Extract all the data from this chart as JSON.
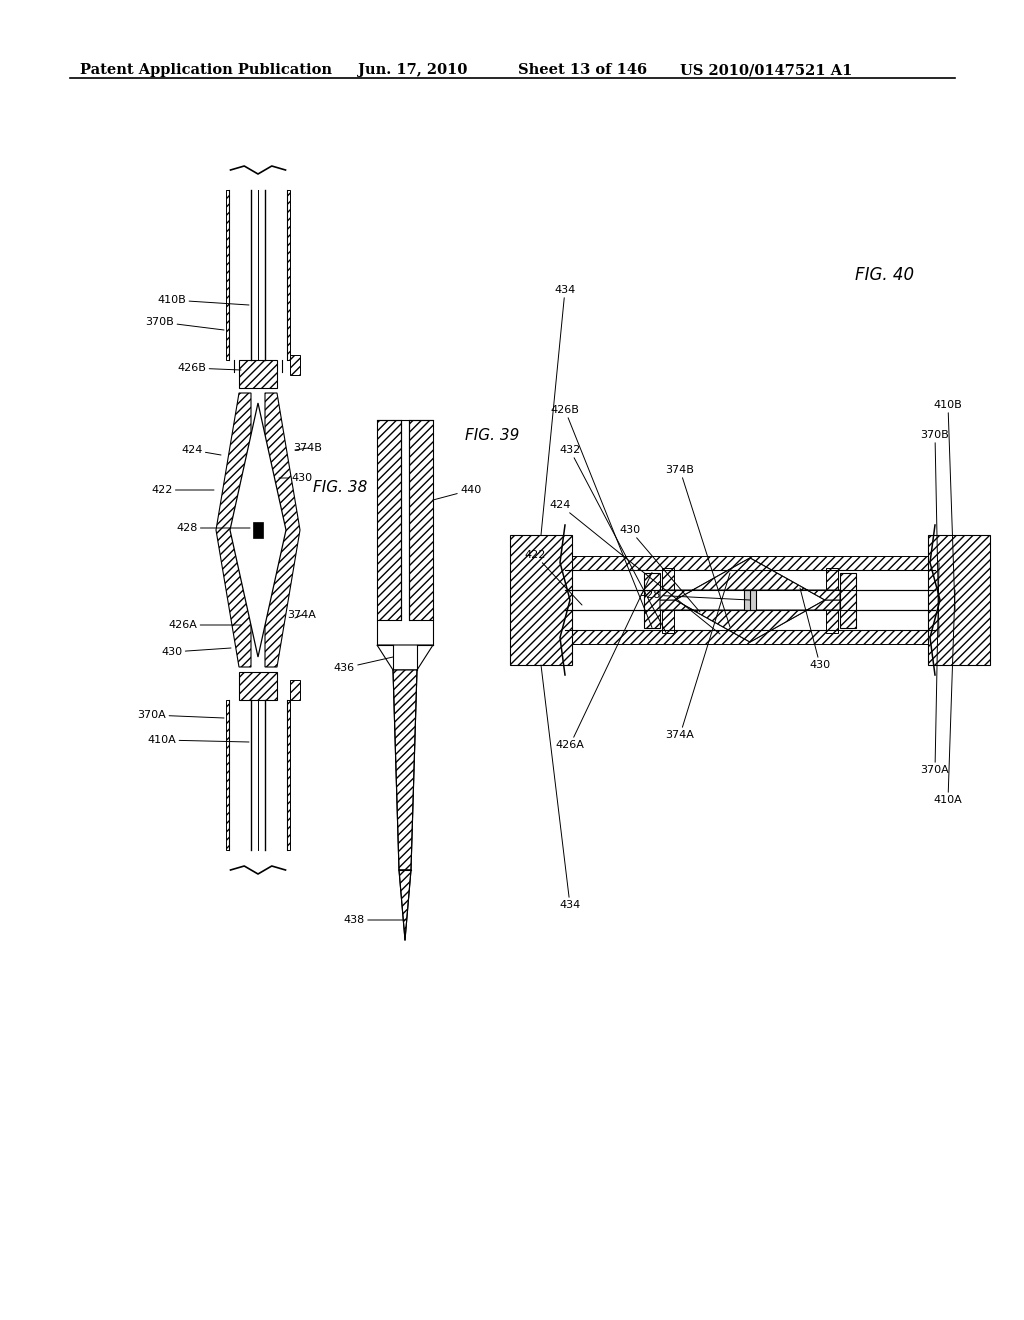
{
  "bg_color": "#ffffff",
  "header_text": "Patent Application Publication",
  "header_date": "Jun. 17, 2010",
  "header_sheet": "Sheet 13 of 146",
  "header_patent": "US 2010/0147521 A1",
  "fig38_label": "FIG. 38",
  "fig39_label": "FIG. 39",
  "fig40_label": "FIG. 40"
}
